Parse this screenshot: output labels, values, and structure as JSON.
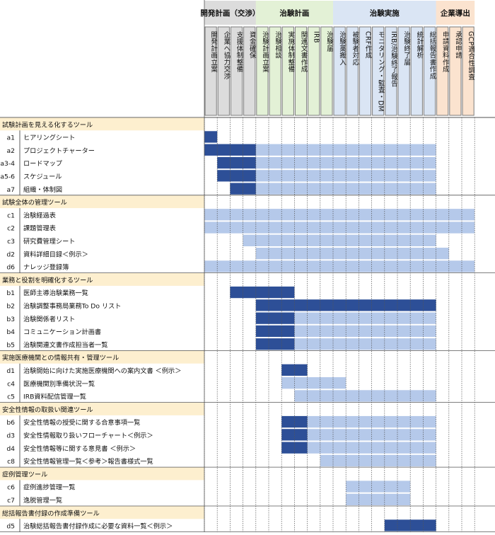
{
  "chart_data": {
    "type": "table",
    "phases": [
      {
        "label": "開発計画（交渉）",
        "color": "#dcdcdc",
        "cols": [
          0,
          3
        ]
      },
      {
        "label": "治験計画",
        "color": "#e3f1d6",
        "cols": [
          4,
          9
        ]
      },
      {
        "label": "治験実施",
        "color": "#dae5f4",
        "cols": [
          10,
          17
        ]
      },
      {
        "label": "企業導出",
        "color": "#fbe3cf",
        "cols": [
          18,
          20
        ]
      }
    ],
    "columns": [
      {
        "label": "開発計画立案",
        "phase": 0
      },
      {
        "label": "企業へ協力交渉",
        "phase": 0
      },
      {
        "label": "支援体制整備",
        "phase": 0
      },
      {
        "label": "資金確保",
        "phase": 0
      },
      {
        "label": "治験計画立案",
        "phase": 1
      },
      {
        "label": "治験相談",
        "phase": 1
      },
      {
        "label": "実施体制整備",
        "phase": 1
      },
      {
        "label": "関連文書作成",
        "phase": 1
      },
      {
        "label": "IRB",
        "phase": 1
      },
      {
        "label": "治験届",
        "phase": 1
      },
      {
        "label": "治験薬搬入",
        "phase": 2
      },
      {
        "label": "被験者対応",
        "phase": 2
      },
      {
        "label": "CRF作成",
        "phase": 2
      },
      {
        "label": "モニタリング・監査・DM",
        "phase": 2
      },
      {
        "label": "IRB/治験終了報告",
        "phase": 2
      },
      {
        "label": "治験終了届",
        "phase": 2
      },
      {
        "label": "統計解析",
        "phase": 2
      },
      {
        "label": "総括報告書作成",
        "phase": 2
      },
      {
        "label": "申請資料作成",
        "phase": 3
      },
      {
        "label": "承認申請",
        "phase": 3
      },
      {
        "label": "GCP適合性調査",
        "phase": 3
      }
    ],
    "groups": [
      {
        "title": "試験計画を見える化するツール",
        "rows": [
          {
            "id": "a1",
            "name": "ヒアリングシート",
            "dark": [
              0,
              0
            ],
            "light": []
          },
          {
            "id": "a2",
            "name": "プロジェクトチャーター",
            "dark": [
              0,
              3
            ],
            "light": [
              4,
              17
            ]
          },
          {
            "id": "a3-4",
            "name": "ロードマップ",
            "dark": [
              1,
              3
            ],
            "light": [
              4,
              17
            ]
          },
          {
            "id": "a5-6",
            "name": "スケジュール",
            "dark": [
              1,
              3
            ],
            "light": [
              4,
              17
            ]
          },
          {
            "id": "a7",
            "name": "組織・体制図",
            "dark": [
              2,
              3
            ],
            "light": [
              4,
              17
            ]
          }
        ]
      },
      {
        "title": "試験全体の管理ツール",
        "rows": [
          {
            "id": "c1",
            "name": "治験経過表",
            "dark": [],
            "light": [
              0,
              20
            ]
          },
          {
            "id": "c2",
            "name": "課題管理表",
            "dark": [],
            "light": [
              0,
              20
            ]
          },
          {
            "id": "c3",
            "name": "研究費管理シート",
            "dark": [],
            "light": [
              3,
              17
            ]
          },
          {
            "id": "d2",
            "name": "資料詳細目録＜例示＞",
            "dark": [],
            "light": [
              4,
              18
            ]
          },
          {
            "id": "d6",
            "name": "ナレッジ登録簿",
            "dark": [],
            "light": [
              0,
              20
            ]
          }
        ]
      },
      {
        "title": "業務と役割を明確化するツール",
        "rows": [
          {
            "id": "b1",
            "name": "医師主導治験業務一覧",
            "dark": [
              2,
              6
            ],
            "light": []
          },
          {
            "id": "b2",
            "name": "治験調整事務局業務To Do リスト",
            "dark": [
              4,
              17
            ],
            "light": []
          },
          {
            "id": "b3",
            "name": "治験関係者リスト",
            "dark": [
              4,
              6
            ],
            "light": [
              7,
              17
            ]
          },
          {
            "id": "b4",
            "name": "コミュニケーション計画書",
            "dark": [
              4,
              6
            ],
            "light": [
              7,
              17
            ]
          },
          {
            "id": "b5",
            "name": "治験関連文書作成担当者一覧",
            "dark": [
              4,
              6
            ],
            "light": [
              7,
              17
            ]
          }
        ]
      },
      {
        "title": "実施医療機関との情報共有・管理ツール",
        "rows": [
          {
            "id": "d1",
            "name": "治験開始に向けた実施医療機関への案内文書 ＜例示＞",
            "dark": [
              6,
              7
            ],
            "light": []
          },
          {
            "id": "c4",
            "name": "医療機関別準備状況一覧",
            "dark": [],
            "light": [
              6,
              10
            ]
          },
          {
            "id": "c5",
            "name": "IRB資料配信管理一覧",
            "dark": [],
            "light": [
              7,
              17
            ]
          }
        ]
      },
      {
        "title": "安全性情報の取扱い関連ツール",
        "rows": [
          {
            "id": "b6",
            "name": "安全性情報の授受に関する合意事項一覧",
            "dark": [
              6,
              7
            ],
            "light": [
              8,
              17
            ]
          },
          {
            "id": "d3",
            "name": "安全性情報取り扱いフローチャート＜例示＞",
            "dark": [
              6,
              7
            ],
            "light": [
              8,
              17
            ]
          },
          {
            "id": "d4",
            "name": "安全性情報等に関する意見書 ＜例示＞",
            "dark": [
              6,
              7
            ],
            "light": [
              8,
              17
            ]
          },
          {
            "id": "c8",
            "name": "安全性情報管理一覧＜参考＞報告書様式一覧",
            "dark": [],
            "light": [
              9,
              17
            ]
          }
        ]
      },
      {
        "title": "症例管理ツール",
        "rows": [
          {
            "id": "c6",
            "name": "症例進捗管理一覧",
            "dark": [],
            "light": [
              11,
              15
            ]
          },
          {
            "id": "c7",
            "name": "逸脱管理一覧",
            "dark": [],
            "light": [
              11,
              15
            ]
          }
        ]
      },
      {
        "title": "総括報告書付録の作成準備ツール",
        "rows": [
          {
            "id": "d5",
            "name": "治験総括報告書付録作成に必要な資料一覧＜例示＞",
            "dark": [
              14,
              17
            ],
            "light": []
          }
        ]
      }
    ],
    "colors": {
      "dark": "#2d4f97",
      "light": "#b5c9ea",
      "group_bg": "#fdefcf",
      "header_border": "#7a7a7a"
    },
    "grid": true
  }
}
